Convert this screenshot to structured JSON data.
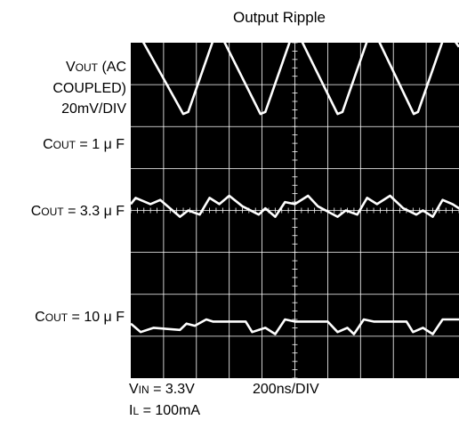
{
  "title": "Output Ripple",
  "vout_label": {
    "line1_prefix": "V",
    "line1_sub": "OUT",
    "line1_suffix": " (AC",
    "line2": "COUPLED)",
    "line3": "20mV/DIV"
  },
  "traces": [
    {
      "prefix": "C",
      "sub": "OUT",
      "value": " = 1 μ F"
    },
    {
      "prefix": "C",
      "sub": "OUT",
      "value": " = 3.3 μ F"
    },
    {
      "prefix": "C",
      "sub": "OUT",
      "value": " = 10 μ F"
    }
  ],
  "conditions": {
    "vin_prefix": "V",
    "vin_sub": "IN",
    "vin_value": " = 3.3V",
    "il_prefix": "I",
    "il_sub": "L",
    "il_value": " = 100mA"
  },
  "time_div": "200ns/DIV",
  "chart_data": {
    "type": "line",
    "title": "Output Ripple",
    "ylabel": "VOUT (AC COUPLED) 20mV/DIV",
    "xlabel": "200ns/DIV",
    "grid": true,
    "divisions": {
      "x": 10,
      "y": 8
    },
    "colors": {
      "background": "#000000",
      "grid": "#ffffff",
      "trace": "#ffffff"
    },
    "series": [
      {
        "name": "COUT = 1 μ F",
        "x": [
          0.05,
          0.2,
          0.32,
          1.6,
          1.75,
          2.75,
          2.8,
          3.95,
          4.1,
          5.1,
          5.17,
          6.3,
          6.45,
          7.45,
          7.52,
          8.62,
          8.75,
          9.75,
          9.82,
          10.0
        ],
        "y": [
          4.6,
          4.1,
          4.1,
          2.3,
          2.35,
          4.6,
          4.1,
          2.3,
          2.35,
          4.6,
          4.1,
          2.3,
          2.35,
          4.6,
          4.1,
          2.3,
          2.35,
          4.6,
          4.1,
          3.9
        ]
      },
      {
        "name": "COUT = 3.3 μ F",
        "x": [
          0.0,
          0.15,
          0.6,
          0.9,
          1.5,
          1.75,
          2.1,
          2.4,
          2.7,
          3.0,
          3.4,
          3.9,
          4.1,
          4.4,
          4.7,
          5.0,
          5.4,
          5.7,
          6.3,
          6.55,
          6.9,
          7.2,
          7.5,
          7.9,
          8.3,
          8.7,
          8.9,
          9.2,
          9.5,
          9.8,
          10.0
        ],
        "y": [
          0.15,
          0.3,
          0.15,
          0.25,
          -0.15,
          0.0,
          -0.1,
          0.3,
          0.15,
          0.35,
          0.1,
          -0.1,
          0.05,
          -0.15,
          0.2,
          0.15,
          0.35,
          0.1,
          -0.15,
          0.0,
          -0.1,
          0.3,
          0.15,
          0.35,
          0.05,
          -0.1,
          0.0,
          -0.15,
          0.25,
          0.15,
          0.05
        ]
      },
      {
        "name": "COUT = 10 μ F",
        "x": [
          0.0,
          0.15,
          0.3,
          0.7,
          1.5,
          1.7,
          1.95,
          2.3,
          2.5,
          3.5,
          3.7,
          4.1,
          4.4,
          4.7,
          5.0,
          6.0,
          6.3,
          6.6,
          6.8,
          7.1,
          7.4,
          8.4,
          8.6,
          8.9,
          9.2,
          9.5,
          10.0
        ],
        "y": [
          -2.7,
          -2.8,
          -2.9,
          -2.8,
          -2.85,
          -2.7,
          -2.75,
          -2.6,
          -2.65,
          -2.65,
          -2.9,
          -2.8,
          -2.95,
          -2.6,
          -2.65,
          -2.65,
          -2.9,
          -2.8,
          -2.95,
          -2.6,
          -2.65,
          -2.65,
          -2.9,
          -2.8,
          -2.95,
          -2.6,
          -2.6
        ]
      }
    ]
  }
}
